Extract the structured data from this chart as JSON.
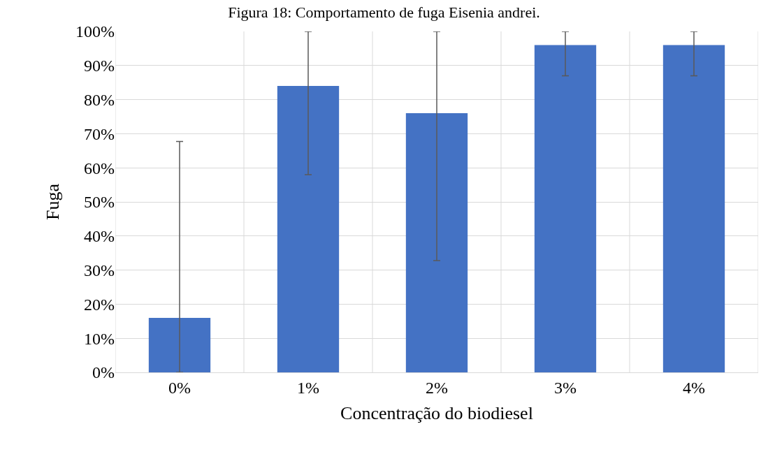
{
  "chart_data": {
    "type": "bar",
    "title": "Figura 18: Comportamento de fuga Eisenia andrei.",
    "xlabel": "Concentração do biodiesel",
    "ylabel": "Fuga",
    "categories": [
      "0%",
      "1%",
      "2%",
      "3%",
      "4%"
    ],
    "series": [
      {
        "color": "#4472c4",
        "values": [
          16,
          84,
          76,
          96,
          96
        ],
        "errors": [
          [
            0,
            67.7
          ],
          [
            58,
            100
          ],
          [
            32.8,
            100
          ],
          [
            87,
            100
          ],
          [
            87,
            100
          ]
        ]
      }
    ],
    "ylim": [
      0,
      100
    ],
    "yticks": [
      {
        "value": 0,
        "label": "0%"
      },
      {
        "value": 10,
        "label": "10%"
      },
      {
        "value": 20,
        "label": "20%"
      },
      {
        "value": 30,
        "label": "30%"
      },
      {
        "value": 40,
        "label": "40%"
      },
      {
        "value": 50,
        "label": "50%"
      },
      {
        "value": 60,
        "label": "60%"
      },
      {
        "value": 70,
        "label": "70%"
      },
      {
        "value": 80,
        "label": "80%"
      },
      {
        "value": 90,
        "label": "90%"
      },
      {
        "value": 100,
        "label": "100%"
      }
    ],
    "grid": true
  }
}
